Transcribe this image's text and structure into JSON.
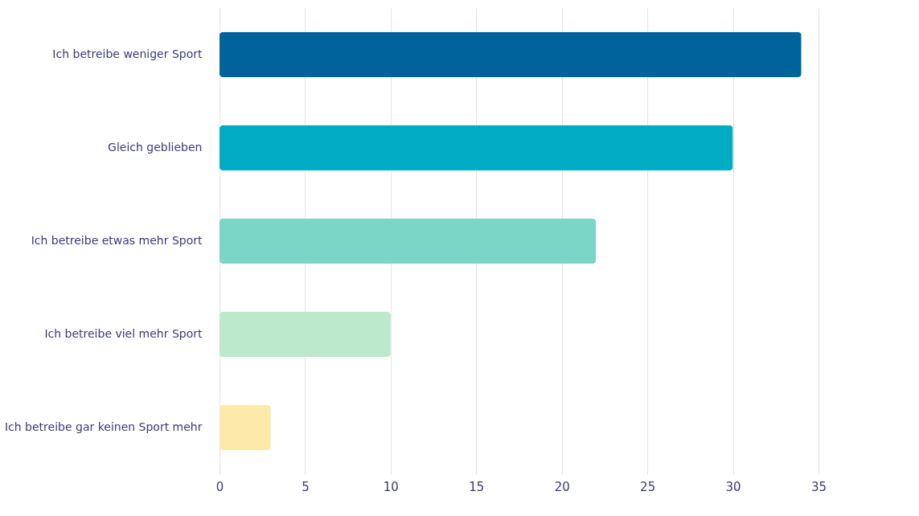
{
  "chart_data": {
    "type": "bar",
    "orientation": "horizontal",
    "categories": [
      "Ich betreibe weniger Sport",
      "Gleich geblieben",
      "Ich betreibe etwas mehr Sport",
      "Ich betreibe viel mehr Sport",
      "Ich betreibe gar keinen Sport mehr"
    ],
    "values": [
      34,
      30,
      22,
      10,
      3
    ],
    "colors": [
      "#00639c",
      "#00abc4",
      "#7cd6c8",
      "#bce9c9",
      "#fde9a9"
    ],
    "xlim": [
      0,
      35
    ],
    "xticks": [
      0,
      5,
      10,
      15,
      20,
      25,
      30,
      35
    ],
    "grid": "x"
  }
}
